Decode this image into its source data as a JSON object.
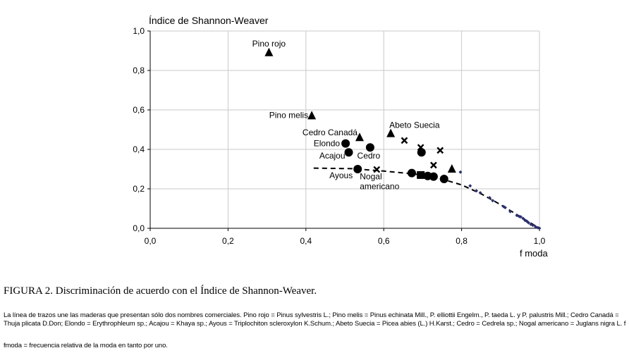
{
  "chart_data": {
    "type": "scatter",
    "title": "",
    "ylabel": "Índice de Shannon-Weaver",
    "xlabel": "f moda",
    "xlim": [
      0,
      1.0
    ],
    "ylim": [
      0,
      1.0
    ],
    "x_ticks": [
      "0,0",
      "0,2",
      "0,4",
      "0,6",
      "0,8",
      "1,0"
    ],
    "y_ticks": [
      "0,0",
      "0,2",
      "0,4",
      "0,6",
      "0,8",
      "1,0"
    ],
    "grid": true,
    "series": [
      {
        "marker": "triangle",
        "points": [
          {
            "x": 0.305,
            "y": 0.89,
            "label": "Pino rojo"
          },
          {
            "x": 0.415,
            "y": 0.57,
            "label": "Pino melis"
          },
          {
            "x": 0.538,
            "y": 0.46,
            "label": "Cedro Canadá"
          },
          {
            "x": 0.618,
            "y": 0.48,
            "label": "Abeto Suecia"
          },
          {
            "x": 0.775,
            "y": 0.3,
            "label": ""
          }
        ]
      },
      {
        "marker": "circle",
        "points": [
          {
            "x": 0.502,
            "y": 0.43,
            "label": "Elondo"
          },
          {
            "x": 0.51,
            "y": 0.385,
            "label": "Acajou"
          },
          {
            "x": 0.565,
            "y": 0.41,
            "label": "Cedro"
          },
          {
            "x": 0.533,
            "y": 0.3,
            "label": "Ayous"
          },
          {
            "x": 0.672,
            "y": 0.28,
            "label": ""
          },
          {
            "x": 0.697,
            "y": 0.385,
            "label": ""
          },
          {
            "x": 0.713,
            "y": 0.265,
            "label": ""
          },
          {
            "x": 0.728,
            "y": 0.262,
            "label": ""
          },
          {
            "x": 0.755,
            "y": 0.25,
            "label": ""
          }
        ]
      },
      {
        "marker": "cross",
        "points": [
          {
            "x": 0.582,
            "y": 0.298,
            "label": "Nogal americano"
          },
          {
            "x": 0.653,
            "y": 0.445,
            "label": ""
          },
          {
            "x": 0.695,
            "y": 0.41,
            "label": ""
          },
          {
            "x": 0.728,
            "y": 0.32,
            "label": ""
          },
          {
            "x": 0.745,
            "y": 0.395,
            "label": ""
          }
        ]
      },
      {
        "marker": "square",
        "points": [
          {
            "x": 0.695,
            "y": 0.27,
            "label": ""
          }
        ]
      },
      {
        "marker": "small-diamond",
        "color": "#2b2f6e",
        "points": [
          {
            "x": 0.797,
            "y": 0.285
          },
          {
            "x": 0.822,
            "y": 0.215
          },
          {
            "x": 0.838,
            "y": 0.19
          },
          {
            "x": 0.848,
            "y": 0.18
          },
          {
            "x": 0.872,
            "y": 0.155
          },
          {
            "x": 0.88,
            "y": 0.14
          },
          {
            "x": 0.908,
            "y": 0.11
          },
          {
            "x": 0.912,
            "y": 0.105
          },
          {
            "x": 0.925,
            "y": 0.085
          },
          {
            "x": 0.942,
            "y": 0.065
          },
          {
            "x": 0.948,
            "y": 0.06
          },
          {
            "x": 0.952,
            "y": 0.058
          },
          {
            "x": 0.958,
            "y": 0.05
          },
          {
            "x": 0.963,
            "y": 0.04
          },
          {
            "x": 0.968,
            "y": 0.035
          },
          {
            "x": 0.972,
            "y": 0.028
          },
          {
            "x": 0.978,
            "y": 0.02
          },
          {
            "x": 0.983,
            "y": 0.015
          },
          {
            "x": 0.99,
            "y": 0.008
          },
          {
            "x": 0.996,
            "y": 0.003
          },
          {
            "x": 1.0,
            "y": 0.0
          }
        ]
      }
    ],
    "dashed_line": [
      {
        "x": 0.42,
        "y": 0.305
      },
      {
        "x": 0.52,
        "y": 0.302
      },
      {
        "x": 0.6,
        "y": 0.29
      },
      {
        "x": 0.68,
        "y": 0.275
      },
      {
        "x": 0.74,
        "y": 0.255
      },
      {
        "x": 0.8,
        "y": 0.22
      },
      {
        "x": 0.85,
        "y": 0.175
      },
      {
        "x": 0.9,
        "y": 0.12
      },
      {
        "x": 0.95,
        "y": 0.06
      },
      {
        "x": 1.0,
        "y": 0.0
      }
    ]
  },
  "caption": "FIGURA 2. Discriminación de acuerdo con el Índice de Shannon-Weaver.",
  "note_line1": "La línea de trazos une las maderas que presentan sólo dos nombres comerciales. Pino rojo = Pinus sylvestris L.; Pino melis = Pinus echinata Mill., P. elliottii Engelm., P. taeda L. y P. palustris Mill.; Cedro Canadá = Thuja plicata D.Don; Elondo = Erythrophleum sp.; Acajou = Khaya sp.; Ayous = Triplochiton scleroxylon K.Schum.; Abeto Suecia = Picea abies (L.) H.Karst.; Cedro = Cedrela sp.; Nogal americano = Juglans nigra L. f",
  "note_line2": "fmoda = frecuencia relativa de la moda en tanto por uno."
}
